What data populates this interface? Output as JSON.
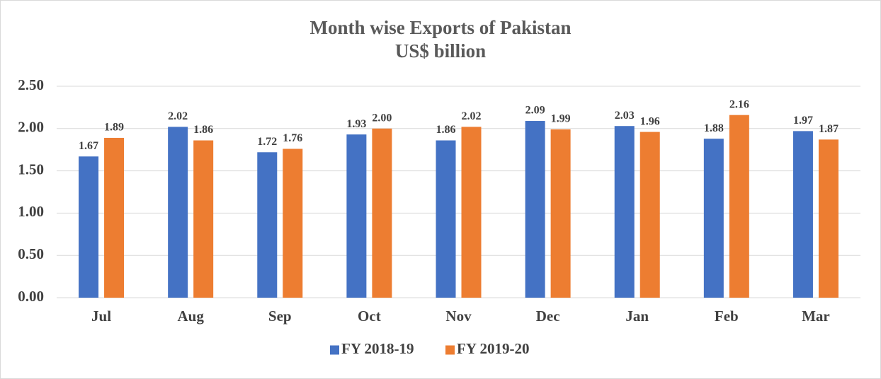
{
  "chart_data": {
    "type": "bar",
    "title": "Month wise Exports of Pakistan",
    "subtitle": "US$ billion",
    "categories": [
      "Jul",
      "Aug",
      "Sep",
      "Oct",
      "Nov",
      "Dec",
      "Jan",
      "Feb",
      "Mar"
    ],
    "series": [
      {
        "name": "FY 2018-19",
        "color": "#4472c4",
        "values": [
          1.67,
          2.02,
          1.72,
          1.93,
          1.86,
          2.09,
          2.03,
          1.88,
          1.97
        ],
        "value_labels": [
          "1.67",
          "2.02",
          "1.72",
          "1.93",
          "1.86",
          "2.09",
          "2.03",
          "1.88",
          "1.97"
        ]
      },
      {
        "name": "FY 2019-20",
        "color": "#ed7d31",
        "values": [
          1.89,
          1.86,
          1.76,
          2.0,
          2.02,
          1.99,
          1.96,
          2.16,
          1.87
        ],
        "value_labels": [
          "1.89",
          "1.86",
          "1.76",
          "2.00",
          "2.02",
          "1.99",
          "1.96",
          "2.16",
          "1.87"
        ]
      }
    ],
    "ylim": [
      0,
      2.5
    ],
    "yticks": [
      {
        "value": 0,
        "label": "0.00"
      },
      {
        "value": 0.5,
        "label": "0.50"
      },
      {
        "value": 1,
        "label": "1.00"
      },
      {
        "value": 1.5,
        "label": "1.50"
      },
      {
        "value": 2,
        "label": "2.00"
      },
      {
        "value": 2.5,
        "label": "2.50"
      }
    ],
    "grid": true,
    "legend": "bottom"
  }
}
